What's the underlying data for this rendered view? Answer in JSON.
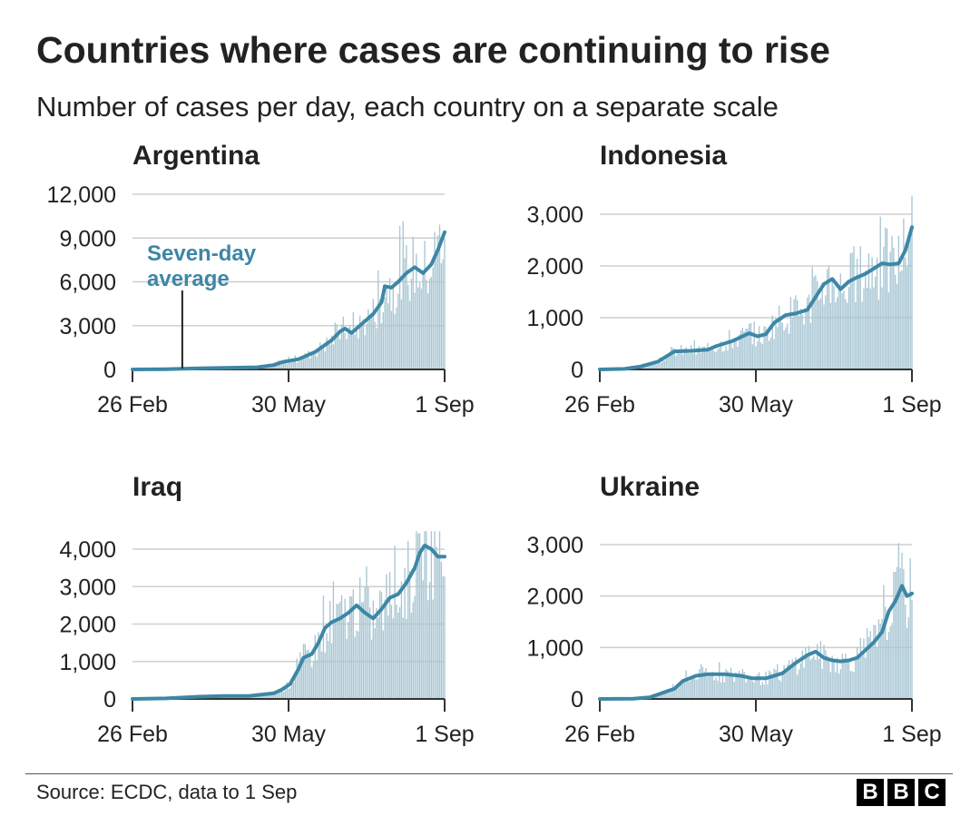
{
  "header": {
    "title": "Countries where cases are continuing to rise",
    "subtitle": "Number of cases per day, each country on a separate scale"
  },
  "footer": {
    "source": "Source: ECDC, data to 1 Sep",
    "logo_letters": [
      "B",
      "B",
      "C"
    ]
  },
  "colors": {
    "line": "#3d87a6",
    "bars": "#a9c7d4",
    "grid": "#cfcfcf",
    "text": "#222222"
  },
  "chart_data": [
    {
      "type": "bar",
      "title": "Argentina",
      "ylim": [
        0,
        12000
      ],
      "yticks": [
        0,
        3000,
        6000,
        9000,
        12000
      ],
      "ytick_labels": [
        "0",
        "3,000",
        "6,000",
        "9,000",
        "12,000"
      ],
      "xtick_labels": [
        "26 Feb",
        "30 May",
        "1 Sep"
      ],
      "x_range_days": [
        0,
        188
      ],
      "annotation": {
        "lines": [
          "Seven-day",
          "average"
        ],
        "target_day": 30
      },
      "series": [
        {
          "name": "Seven-day average",
          "type": "line",
          "points": [
            [
              0,
              0
            ],
            [
              20,
              20
            ],
            [
              40,
              80
            ],
            [
              60,
              120
            ],
            [
              75,
              150
            ],
            [
              85,
              300
            ],
            [
              90,
              500
            ],
            [
              100,
              700
            ],
            [
              110,
              1200
            ],
            [
              115,
              1600
            ],
            [
              120,
              2000
            ],
            [
              125,
              2600
            ],
            [
              128,
              2800
            ],
            [
              132,
              2500
            ],
            [
              138,
              3100
            ],
            [
              145,
              3800
            ],
            [
              150,
              4600
            ],
            [
              152,
              5700
            ],
            [
              156,
              5600
            ],
            [
              160,
              6000
            ],
            [
              165,
              6600
            ],
            [
              170,
              7000
            ],
            [
              175,
              6600
            ],
            [
              180,
              7200
            ],
            [
              184,
              8200
            ],
            [
              188,
              9400
            ]
          ]
        }
      ]
    },
    {
      "type": "bar",
      "title": "Indonesia",
      "ylim": [
        0,
        3000
      ],
      "yticks": [
        0,
        1000,
        2000,
        3000
      ],
      "ytick_labels": [
        "0",
        "1,000",
        "2,000",
        "3,000"
      ],
      "xtick_labels": [
        "26 Feb",
        "30 May",
        "1 Sep"
      ],
      "x_range_days": [
        0,
        188
      ],
      "series": [
        {
          "name": "Seven-day average",
          "type": "line",
          "points": [
            [
              0,
              0
            ],
            [
              15,
              10
            ],
            [
              25,
              60
            ],
            [
              35,
              150
            ],
            [
              45,
              350
            ],
            [
              55,
              360
            ],
            [
              65,
              380
            ],
            [
              70,
              450
            ],
            [
              80,
              550
            ],
            [
              90,
              700
            ],
            [
              95,
              640
            ],
            [
              100,
              680
            ],
            [
              105,
              900
            ],
            [
              112,
              1050
            ],
            [
              118,
              1080
            ],
            [
              125,
              1150
            ],
            [
              130,
              1400
            ],
            [
              135,
              1650
            ],
            [
              140,
              1750
            ],
            [
              145,
              1550
            ],
            [
              150,
              1700
            ],
            [
              155,
              1780
            ],
            [
              160,
              1850
            ],
            [
              165,
              1950
            ],
            [
              170,
              2050
            ],
            [
              175,
              2030
            ],
            [
              180,
              2050
            ],
            [
              184,
              2300
            ],
            [
              188,
              2750
            ]
          ]
        }
      ]
    },
    {
      "type": "bar",
      "title": "Iraq",
      "ylim": [
        0,
        4000
      ],
      "yticks": [
        0,
        1000,
        2000,
        3000,
        4000
      ],
      "ytick_labels": [
        "0",
        "1,000",
        "2,000",
        "3,000",
        "4,000"
      ],
      "xtick_labels": [
        "26 Feb",
        "30 May",
        "1 Sep"
      ],
      "x_range_days": [
        0,
        188
      ],
      "series": [
        {
          "name": "Seven-day average",
          "type": "line",
          "points": [
            [
              0,
              0
            ],
            [
              20,
              15
            ],
            [
              40,
              60
            ],
            [
              55,
              80
            ],
            [
              70,
              80
            ],
            [
              85,
              150
            ],
            [
              90,
              250
            ],
            [
              95,
              400
            ],
            [
              100,
              800
            ],
            [
              103,
              1100
            ],
            [
              108,
              1200
            ],
            [
              112,
              1500
            ],
            [
              116,
              1900
            ],
            [
              120,
              2050
            ],
            [
              125,
              2150
            ],
            [
              130,
              2300
            ],
            [
              135,
              2500
            ],
            [
              140,
              2300
            ],
            [
              145,
              2150
            ],
            [
              150,
              2400
            ],
            [
              155,
              2700
            ],
            [
              160,
              2800
            ],
            [
              165,
              3100
            ],
            [
              170,
              3500
            ],
            [
              173,
              3900
            ],
            [
              176,
              4100
            ],
            [
              180,
              4000
            ],
            [
              184,
              3800
            ],
            [
              188,
              3800
            ]
          ]
        }
      ]
    },
    {
      "type": "bar",
      "title": "Ukraine",
      "ylim": [
        0,
        3000
      ],
      "yticks": [
        0,
        1000,
        2000,
        3000
      ],
      "ytick_labels": [
        "0",
        "1,000",
        "2,000",
        "3,000"
      ],
      "xtick_labels": [
        "26 Feb",
        "30 May",
        "1 Sep"
      ],
      "x_range_days": [
        0,
        188
      ],
      "series": [
        {
          "name": "Seven-day average",
          "type": "line",
          "points": [
            [
              0,
              0
            ],
            [
              20,
              5
            ],
            [
              30,
              30
            ],
            [
              38,
              120
            ],
            [
              45,
              200
            ],
            [
              50,
              350
            ],
            [
              58,
              450
            ],
            [
              65,
              480
            ],
            [
              75,
              480
            ],
            [
              85,
              450
            ],
            [
              92,
              400
            ],
            [
              100,
              400
            ],
            [
              110,
              500
            ],
            [
              118,
              700
            ],
            [
              125,
              850
            ],
            [
              130,
              920
            ],
            [
              135,
              800
            ],
            [
              140,
              750
            ],
            [
              145,
              730
            ],
            [
              150,
              750
            ],
            [
              155,
              800
            ],
            [
              160,
              950
            ],
            [
              165,
              1100
            ],
            [
              170,
              1300
            ],
            [
              174,
              1700
            ],
            [
              178,
              1900
            ],
            [
              182,
              2200
            ],
            [
              185,
              2000
            ],
            [
              188,
              2050
            ]
          ]
        }
      ]
    }
  ]
}
